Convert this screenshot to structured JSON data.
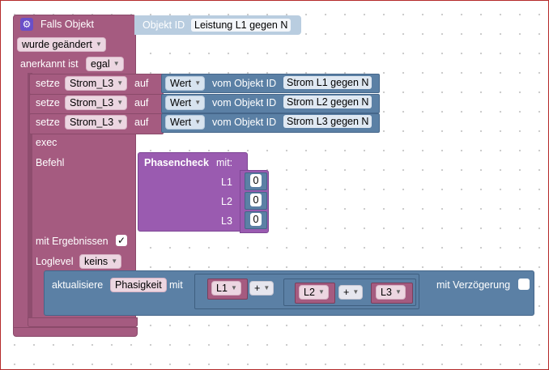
{
  "event_block": {
    "title": "Falls Objekt",
    "object_label": "Objekt ID",
    "object_value": "Leistung L1 gegen N",
    "changed_option": "wurde geändert",
    "ack_label": "anerkannt ist",
    "ack_option": "egal",
    "exec_label": "exec",
    "command_label": "Befehl",
    "results_label": "mit Ergebnissen",
    "results_checked": "✓",
    "loglevel_label": "Loglevel",
    "loglevel_option": "keins"
  },
  "set_rows": [
    {
      "setze": "setze",
      "variable": "Strom_L3",
      "auf": "auf",
      "value_option": "Wert",
      "from_object": "vom Objekt ID",
      "object_id": "Strom L1 gegen N"
    },
    {
      "setze": "setze",
      "variable": "Strom_L3",
      "auf": "auf",
      "value_option": "Wert",
      "from_object": "vom Objekt ID",
      "object_id": "Strom L2 gegen N"
    },
    {
      "setze": "setze",
      "variable": "Strom_L3",
      "auf": "auf",
      "value_option": "Wert",
      "from_object": "vom Objekt ID",
      "object_id": "Strom L3 gegen N"
    }
  ],
  "phasencheck": {
    "title": "Phasencheck",
    "with_label": "mit:",
    "params": [
      {
        "name": "L1",
        "value": "0"
      },
      {
        "name": "L2",
        "value": "0"
      },
      {
        "name": "L3",
        "value": "0"
      }
    ]
  },
  "update_block": {
    "label": "aktualisiere",
    "target": "Phasigkeit",
    "with_label": "mit",
    "var1": "L1",
    "op1": "+",
    "var2": "L2",
    "op2": "+",
    "var3": "L3",
    "delay_label": "mit Verzögerung"
  },
  "icons": {
    "gear": "gear-icon",
    "dropdown": "chevron-down-icon",
    "check": "checkmark-icon"
  },
  "colors": {
    "event": "#a55b80",
    "blue": "#5b80a5",
    "purple": "#9a5bb0",
    "frame": "#b52a2a"
  }
}
